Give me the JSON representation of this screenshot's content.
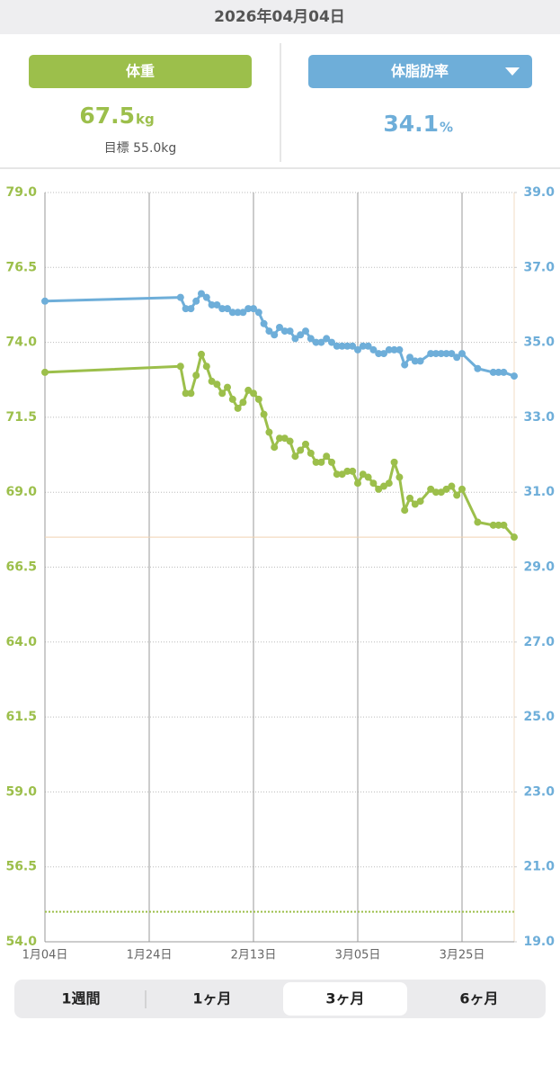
{
  "header": {
    "date": "2026年04月04日"
  },
  "panels": {
    "weight": {
      "value": 67.5,
      "unit": "kg",
      "goal": "目標 55.0kg"
    },
    "fat": {
      "value": 34.1,
      "unit": "%"
    }
  },
  "chart_data": {
    "type": "line",
    "x": [
      "2026-01-04",
      "2026-01-30",
      "2026-01-31",
      "2026-02-01",
      "2026-02-02",
      "2026-02-03",
      "2026-02-04",
      "2026-02-05",
      "2026-02-06",
      "2026-02-07",
      "2026-02-08",
      "2026-02-09",
      "2026-02-10",
      "2026-02-11",
      "2026-02-12",
      "2026-02-13",
      "2026-02-14",
      "2026-02-15",
      "2026-02-16",
      "2026-02-17",
      "2026-02-18",
      "2026-02-19",
      "2026-02-20",
      "2026-02-21",
      "2026-02-22",
      "2026-02-23",
      "2026-02-24",
      "2026-02-25",
      "2026-02-26",
      "2026-02-27",
      "2026-02-28",
      "2026-03-01",
      "2026-03-02",
      "2026-03-03",
      "2026-03-04",
      "2026-03-05",
      "2026-03-06",
      "2026-03-07",
      "2026-03-08",
      "2026-03-09",
      "2026-03-10",
      "2026-03-11",
      "2026-03-12",
      "2026-03-13",
      "2026-03-14",
      "2026-03-15",
      "2026-03-16",
      "2026-03-17",
      "2026-03-19",
      "2026-03-20",
      "2026-03-21",
      "2026-03-22",
      "2026-03-23",
      "2026-03-24",
      "2026-03-25",
      "2026-03-28",
      "2026-03-31",
      "2026-04-01",
      "2026-04-02",
      "2026-04-04"
    ],
    "series": [
      {
        "name": "体重",
        "color": "#9cbf4b",
        "axis": "y",
        "values": [
          73.0,
          73.2,
          72.3,
          72.3,
          72.9,
          73.6,
          73.2,
          72.7,
          72.6,
          72.3,
          72.5,
          72.1,
          71.8,
          72.0,
          72.4,
          72.3,
          72.1,
          71.6,
          71.0,
          70.5,
          70.8,
          70.8,
          70.7,
          70.2,
          70.4,
          70.6,
          70.3,
          70.0,
          70.0,
          70.2,
          70.0,
          69.6,
          69.6,
          69.7,
          69.7,
          69.3,
          69.6,
          69.5,
          69.3,
          69.1,
          69.2,
          69.3,
          70.0,
          69.5,
          68.4,
          68.8,
          68.6,
          68.7,
          69.1,
          69.0,
          69.0,
          69.1,
          69.2,
          68.9,
          69.1,
          68.0,
          67.9,
          67.9,
          67.9,
          67.5
        ]
      },
      {
        "name": "体脂肪率",
        "color": "#6eaed9",
        "axis": "y2",
        "values": [
          36.1,
          36.2,
          35.9,
          35.9,
          36.1,
          36.3,
          36.2,
          36.0,
          36.0,
          35.9,
          35.9,
          35.8,
          35.8,
          35.8,
          35.9,
          35.9,
          35.8,
          35.5,
          35.3,
          35.2,
          35.4,
          35.3,
          35.3,
          35.1,
          35.2,
          35.3,
          35.1,
          35.0,
          35.0,
          35.1,
          35.0,
          34.9,
          34.9,
          34.9,
          34.9,
          34.8,
          34.9,
          34.9,
          34.8,
          34.7,
          34.7,
          34.8,
          34.8,
          34.8,
          34.4,
          34.6,
          34.5,
          34.5,
          34.7,
          34.7,
          34.7,
          34.7,
          34.7,
          34.6,
          34.7,
          34.3,
          34.2,
          34.2,
          34.2,
          34.1
        ]
      }
    ],
    "xlim": [
      "2026-01-04",
      "2026-04-04"
    ],
    "xticks": [
      {
        "value": "2026-01-04",
        "label": "1月04日"
      },
      {
        "value": "2026-01-24",
        "label": "1月24日"
      },
      {
        "value": "2026-02-13",
        "label": "2月13日"
      },
      {
        "value": "2026-03-05",
        "label": "3月05日"
      },
      {
        "value": "2026-03-25",
        "label": "3月25日"
      }
    ],
    "ylim": [
      54,
      79
    ],
    "yticks": [
      {
        "value": 79,
        "label": "79.0"
      },
      {
        "value": 76.5,
        "label": "76.5"
      },
      {
        "value": 74,
        "label": "74.0"
      },
      {
        "value": 71.5,
        "label": "71.5"
      },
      {
        "value": 69,
        "label": "69.0"
      },
      {
        "value": 66.5,
        "label": "66.5"
      },
      {
        "value": 64,
        "label": "64.0"
      },
      {
        "value": 61.5,
        "label": "61.5"
      },
      {
        "value": 59,
        "label": "59.0"
      },
      {
        "value": 56.5,
        "label": "56.5"
      },
      {
        "value": 54,
        "label": "54.0"
      }
    ],
    "y2lim": [
      19,
      39
    ],
    "y2ticks": [
      {
        "value": 39,
        "label": "39.0"
      },
      {
        "value": 37,
        "label": "37.0"
      },
      {
        "value": 35,
        "label": "35.0"
      },
      {
        "value": 33,
        "label": "33.0"
      },
      {
        "value": 31,
        "label": "31.0"
      },
      {
        "value": 29,
        "label": "29.0"
      },
      {
        "value": 27,
        "label": "27.0"
      },
      {
        "value": 25,
        "label": "25.0"
      },
      {
        "value": 23,
        "label": "23.0"
      },
      {
        "value": 21,
        "label": "21.0"
      },
      {
        "value": 19,
        "label": "19.0"
      }
    ],
    "goal_line": 55,
    "current_line": 67.5,
    "grid": true
  },
  "range_tabs": [
    "1週間",
    "1ヶ月",
    "3ヶ月",
    "6ヶ月"
  ],
  "selected_tab": 2
}
